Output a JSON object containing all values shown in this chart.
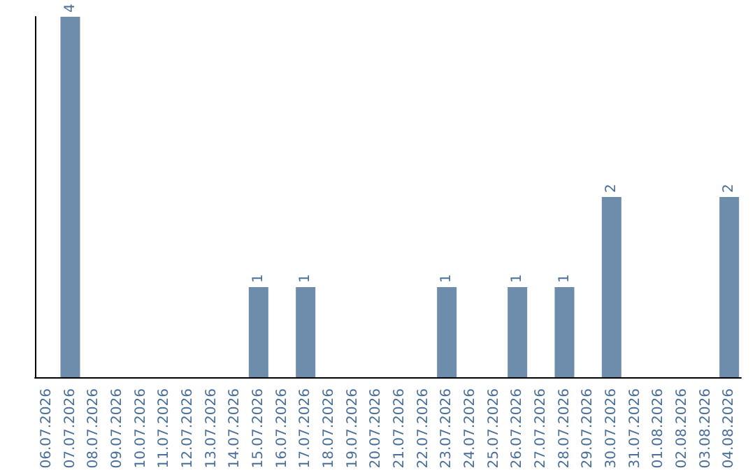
{
  "chart_data": {
    "type": "bar",
    "categories": [
      "06.07.2026",
      "07.07.2026",
      "08.07.2026",
      "09.07.2026",
      "10.07.2026",
      "11.07.2026",
      "12.07.2026",
      "13.07.2026",
      "14.07.2026",
      "15.07.2026",
      "16.07.2026",
      "17.07.2026",
      "18.07.2026",
      "19.07.2026",
      "20.07.2026",
      "21.07.2026",
      "22.07.2026",
      "23.07.2026",
      "24.07.2026",
      "25.07.2026",
      "26.07.2026",
      "27.07.2026",
      "28.07.2026",
      "29.07.2026",
      "30.07.2026",
      "31.07.2026",
      "01.08.2026",
      "02.08.2026",
      "03.08.2026",
      "04.08.2026"
    ],
    "values": [
      0,
      4,
      0,
      0,
      0,
      0,
      0,
      0,
      0,
      1,
      0,
      1,
      0,
      0,
      0,
      0,
      0,
      1,
      0,
      0,
      1,
      0,
      1,
      0,
      2,
      0,
      0,
      0,
      0,
      2
    ],
    "value_labels": [
      null,
      "4",
      null,
      null,
      null,
      null,
      null,
      null,
      null,
      "1",
      null,
      "1",
      null,
      null,
      null,
      null,
      null,
      "1",
      null,
      null,
      "1",
      null,
      "1",
      null,
      "2",
      null,
      null,
      null,
      null,
      "2"
    ],
    "color": "#6e8cab",
    "tick_labels": "x",
    "grid": false
  }
}
